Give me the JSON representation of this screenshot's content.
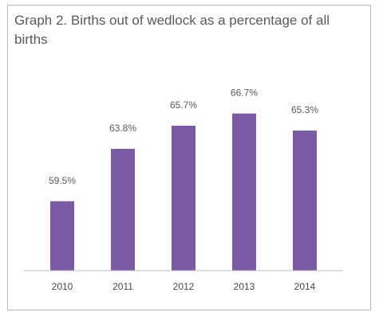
{
  "chart_data": {
    "type": "bar",
    "title": "Graph 2. Births out of wedlock as a percentage of all births",
    "categories": [
      "2010",
      "2011",
      "2012",
      "2013",
      "2014"
    ],
    "values": [
      59.5,
      63.8,
      65.7,
      66.7,
      65.3
    ],
    "value_labels": [
      "59.5%",
      "63.8%",
      "65.7%",
      "66.7%",
      "65.3%"
    ],
    "xlabel": "",
    "ylabel": "",
    "grid": false,
    "legend": "none",
    "color": "#7b5aa6"
  }
}
